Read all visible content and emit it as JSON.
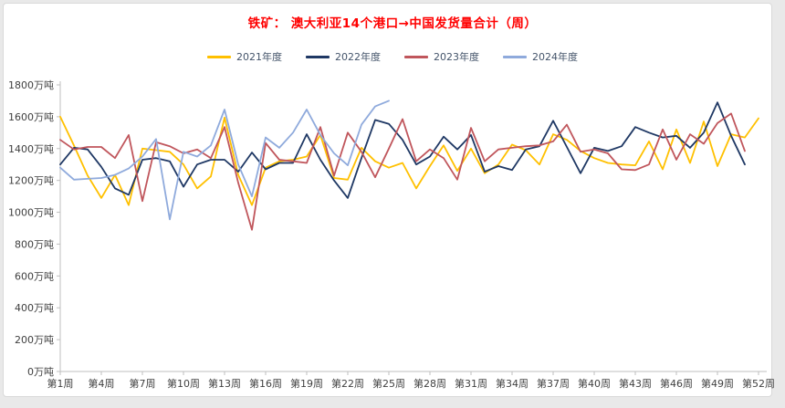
{
  "chart": {
    "title": "铁矿： 澳大利亚14个港口→中国发货量合计（周）",
    "title_color": "#FF0000",
    "axis_color": "#bfbfbf",
    "label_color": "#404040",
    "legend_text_color": "#44546A"
  },
  "chart_data": {
    "type": "line",
    "x_weeks": 52,
    "x_tick_labels": [
      "第1周",
      "第4周",
      "第7周",
      "第10周",
      "第13周",
      "第16周",
      "第19周",
      "第22周",
      "第25周",
      "第28周",
      "第31周",
      "第34周",
      "第37周",
      "第40周",
      "第43周",
      "第46周",
      "第49周",
      "第52周"
    ],
    "x_tick_weeks": [
      1,
      4,
      7,
      10,
      13,
      16,
      19,
      22,
      25,
      28,
      31,
      34,
      37,
      40,
      43,
      46,
      49,
      52
    ],
    "ylim": [
      0,
      1800
    ],
    "y_tick_step": 200,
    "y_unit": "万吨",
    "y_tick_labels": [
      "0万吨",
      "200万吨",
      "400万吨",
      "600万吨",
      "800万吨",
      "1000万吨",
      "1200万吨",
      "1400万吨",
      "1600万吨",
      "1800万吨"
    ],
    "grid": false,
    "legend_position": "top",
    "series": [
      {
        "name": "2021年度",
        "color": "#FFC000",
        "values": [
          1600,
          1420,
          1230,
          1090,
          1235,
          1045,
          1400,
          1390,
          1380,
          1300,
          1150,
          1225,
          1595,
          1235,
          1045,
          1280,
          1320,
          1330,
          1350,
          1485,
          1215,
          1205,
          1405,
          1320,
          1280,
          1310,
          1150,
          1290,
          1420,
          1260,
          1400,
          1245,
          1300,
          1425,
          1390,
          1300,
          1490,
          1455,
          1385,
          1340,
          1310,
          1300,
          1295,
          1445,
          1270,
          1520,
          1310,
          1570,
          1290,
          1490,
          1470,
          1590
        ]
      },
      {
        "name": "2022年度",
        "color": "#1F3864",
        "values": [
          1300,
          1405,
          1395,
          1285,
          1150,
          1110,
          1330,
          1340,
          1320,
          1160,
          1300,
          1330,
          1330,
          1255,
          1375,
          1270,
          1310,
          1310,
          1490,
          1330,
          1200,
          1090,
          1340,
          1580,
          1555,
          1455,
          1300,
          1350,
          1475,
          1395,
          1485,
          1255,
          1290,
          1265,
          1395,
          1415,
          1575,
          1410,
          1245,
          1405,
          1385,
          1415,
          1535,
          1500,
          1470,
          1480,
          1405,
          1500,
          1690,
          1480,
          1300,
          null
        ]
      },
      {
        "name": "2023年度",
        "color": "#C0565C",
        "values": [
          1455,
          1395,
          1410,
          1410,
          1340,
          1485,
          1070,
          1440,
          1415,
          1370,
          1395,
          1340,
          1535,
          1185,
          890,
          1435,
          1330,
          1320,
          1310,
          1535,
          1230,
          1500,
          1380,
          1220,
          1400,
          1585,
          1320,
          1395,
          1340,
          1205,
          1530,
          1320,
          1395,
          1405,
          1415,
          1420,
          1445,
          1550,
          1380,
          1395,
          1370,
          1270,
          1265,
          1300,
          1520,
          1330,
          1490,
          1430,
          1560,
          1620,
          1385,
          null
        ]
      },
      {
        "name": "2024年度",
        "color": "#8FAADC",
        "values": [
          1280,
          1205,
          1210,
          1215,
          1235,
          1275,
          1350,
          1460,
          955,
          1380,
          1350,
          1420,
          1645,
          1300,
          1100,
          1470,
          1405,
          1500,
          1645,
          1485,
          1370,
          1295,
          1550,
          1665,
          1700
        ]
      }
    ]
  }
}
